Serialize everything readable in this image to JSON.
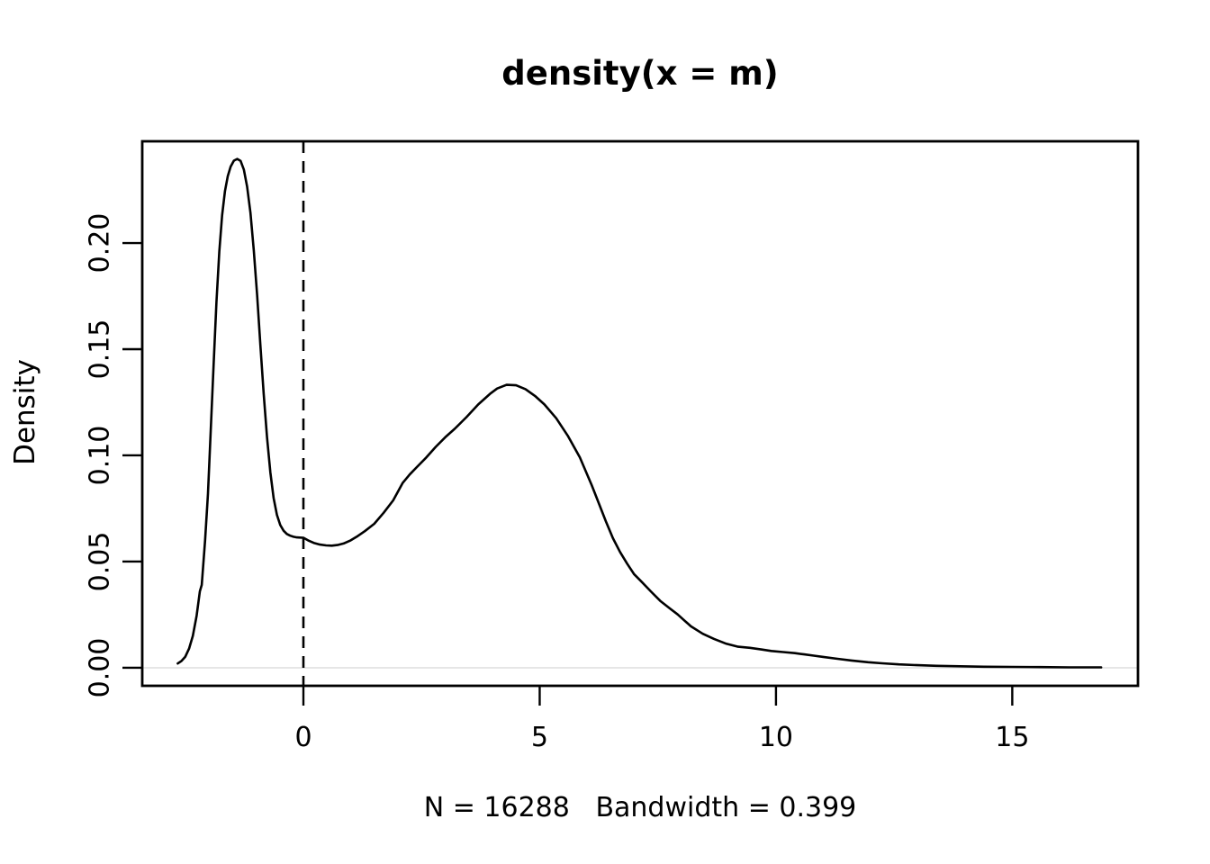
{
  "title": "density(x = m)",
  "x_axis": {
    "label": "N = 16288   Bandwidth = 0.399",
    "tick_labels": [
      "0",
      "5",
      "10",
      "15"
    ],
    "tick_values": [
      0,
      5,
      10,
      15
    ]
  },
  "y_axis": {
    "label": "Density",
    "tick_labels": [
      "0.00",
      "0.05",
      "0.10",
      "0.15",
      "0.20"
    ],
    "tick_values": [
      0,
      0.05,
      0.1,
      0.15,
      0.2
    ]
  },
  "colors": {
    "curve": "#000000",
    "box": "#000000",
    "dashed_line": "#000000",
    "zero_line": "#e6e6e6",
    "text": "#000000",
    "background": "#ffffff"
  },
  "chart_data": {
    "type": "line",
    "title": "density(x = m)",
    "xlabel": "N = 16288   Bandwidth = 0.399",
    "ylabel": "Density",
    "n": 16288,
    "bandwidth": 0.399,
    "xlim": [
      -3.41,
      17.66
    ],
    "ylim": [
      -0.0085,
      0.2479
    ],
    "x_ticks": [
      0,
      5,
      10,
      15
    ],
    "y_ticks": [
      0,
      0.05,
      0.1,
      0.15,
      0.2
    ],
    "grid": false,
    "legend": false,
    "reference_lines": [
      {
        "orientation": "vertical",
        "x": 0,
        "style": "dashed",
        "color": "#000000"
      },
      {
        "orientation": "horizontal",
        "y": 0,
        "style": "solid",
        "color": "#e6e6e6"
      }
    ],
    "series": [
      {
        "name": "kernel-density-estimate",
        "color": "#000000",
        "points": [
          [
            -2.66,
            0.002
          ],
          [
            -2.58,
            0.0032
          ],
          [
            -2.5,
            0.0052
          ],
          [
            -2.42,
            0.009
          ],
          [
            -2.34,
            0.015
          ],
          [
            -2.26,
            0.0245
          ],
          [
            -2.19,
            0.036
          ],
          [
            -2.15,
            0.039
          ],
          [
            -2.08,
            0.06
          ],
          [
            -2.02,
            0.082
          ],
          [
            -1.96,
            0.112
          ],
          [
            -1.9,
            0.143
          ],
          [
            -1.84,
            0.172
          ],
          [
            -1.78,
            0.196
          ],
          [
            -1.72,
            0.213
          ],
          [
            -1.66,
            0.2245
          ],
          [
            -1.6,
            0.2315
          ],
          [
            -1.54,
            0.236
          ],
          [
            -1.47,
            0.2388
          ],
          [
            -1.4,
            0.2396
          ],
          [
            -1.33,
            0.2387
          ],
          [
            -1.26,
            0.2345
          ],
          [
            -1.19,
            0.2265
          ],
          [
            -1.12,
            0.2142
          ],
          [
            -1.05,
            0.1965
          ],
          [
            -0.98,
            0.1755
          ],
          [
            -0.91,
            0.152
          ],
          [
            -0.84,
            0.129
          ],
          [
            -0.77,
            0.1085
          ],
          [
            -0.7,
            0.092
          ],
          [
            -0.63,
            0.08
          ],
          [
            -0.56,
            0.072
          ],
          [
            -0.49,
            0.0672
          ],
          [
            -0.42,
            0.0645
          ],
          [
            -0.35,
            0.063
          ],
          [
            -0.28,
            0.0622
          ],
          [
            -0.21,
            0.0617
          ],
          [
            -0.14,
            0.0614
          ],
          [
            -0.07,
            0.0613
          ],
          [
            0.0,
            0.0612
          ],
          [
            0.1,
            0.06
          ],
          [
            0.22,
            0.0588
          ],
          [
            0.35,
            0.058
          ],
          [
            0.48,
            0.0576
          ],
          [
            0.6,
            0.0575
          ],
          [
            0.72,
            0.0578
          ],
          [
            0.85,
            0.0585
          ],
          [
            1.0,
            0.06
          ],
          [
            1.15,
            0.062
          ],
          [
            1.3,
            0.0643
          ],
          [
            1.5,
            0.0678
          ],
          [
            1.7,
            0.073
          ],
          [
            1.9,
            0.0788
          ],
          [
            2.1,
            0.087
          ],
          [
            2.25,
            0.091
          ],
          [
            2.4,
            0.0945
          ],
          [
            2.6,
            0.099
          ],
          [
            2.8,
            0.104
          ],
          [
            3.0,
            0.1085
          ],
          [
            3.2,
            0.1125
          ],
          [
            3.45,
            0.118
          ],
          [
            3.7,
            0.124
          ],
          [
            3.95,
            0.129
          ],
          [
            4.1,
            0.1315
          ],
          [
            4.3,
            0.1332
          ],
          [
            4.5,
            0.133
          ],
          [
            4.7,
            0.1312
          ],
          [
            4.9,
            0.128
          ],
          [
            5.1,
            0.124
          ],
          [
            5.35,
            0.1175
          ],
          [
            5.6,
            0.109
          ],
          [
            5.85,
            0.099
          ],
          [
            6.1,
            0.086
          ],
          [
            6.25,
            0.0775
          ],
          [
            6.4,
            0.069
          ],
          [
            6.55,
            0.061
          ],
          [
            6.7,
            0.0545
          ],
          [
            6.85,
            0.049
          ],
          [
            7.0,
            0.044
          ],
          [
            7.16,
            0.0404
          ],
          [
            7.35,
            0.036
          ],
          [
            7.55,
            0.0315
          ],
          [
            7.75,
            0.028
          ],
          [
            7.92,
            0.0251
          ],
          [
            8.2,
            0.0195
          ],
          [
            8.45,
            0.016
          ],
          [
            8.69,
            0.0136
          ],
          [
            8.95,
            0.0113
          ],
          [
            9.2,
            0.0099
          ],
          [
            9.45,
            0.0094
          ],
          [
            9.7,
            0.0086
          ],
          [
            9.9,
            0.0079
          ],
          [
            10.15,
            0.0074
          ],
          [
            10.4,
            0.0069
          ],
          [
            10.6,
            0.0063
          ],
          [
            10.8,
            0.0057
          ],
          [
            11.0,
            0.0051
          ],
          [
            11.3,
            0.0042
          ],
          [
            11.6,
            0.0034
          ],
          [
            11.95,
            0.0026
          ],
          [
            12.25,
            0.0021
          ],
          [
            12.6,
            0.0016
          ],
          [
            13.0,
            0.0012
          ],
          [
            13.4,
            0.0009
          ],
          [
            13.9,
            0.0007
          ],
          [
            14.4,
            0.0005
          ],
          [
            15.0,
            0.0004
          ],
          [
            15.6,
            0.0003
          ],
          [
            16.2,
            0.0002
          ],
          [
            16.88,
            0.0002
          ]
        ]
      }
    ]
  }
}
